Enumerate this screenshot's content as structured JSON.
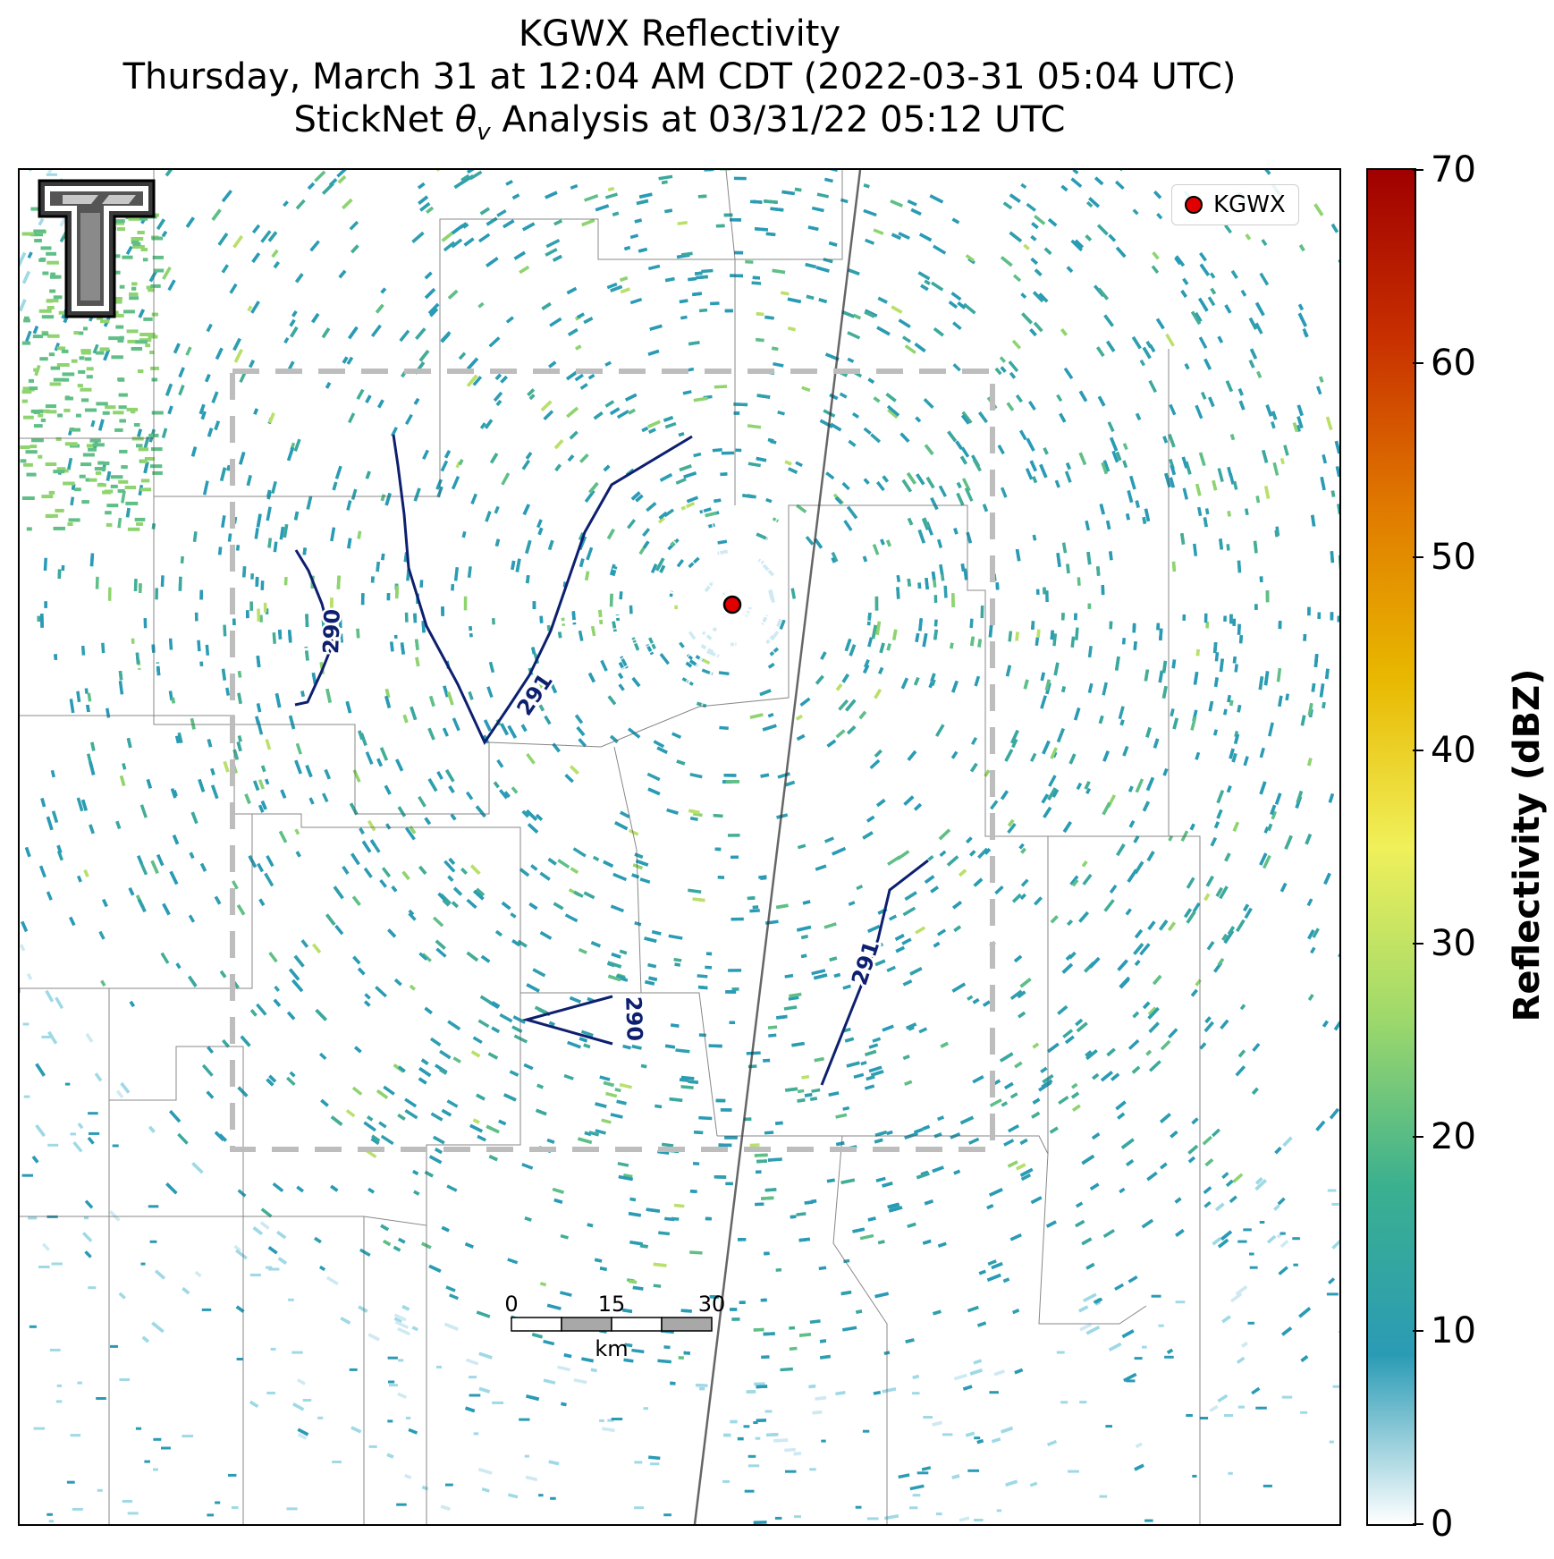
{
  "title": {
    "line1": "KGWX Reflectivity",
    "line2": "Thursday, March 31 at 12:04 AM CDT (2022-03-31 05:04 UTC)",
    "line3_pre": "StickNet ",
    "line3_var": "θ",
    "line3_sub": "v",
    "line3_post": " Analysis at 03/31/22 05:12 UTC"
  },
  "legend": {
    "label": "KGWX",
    "marker_color": "#e00000"
  },
  "colorbar": {
    "label": "Reflectivity (dBZ)",
    "min": 0,
    "max": 70,
    "ticks": [
      "0",
      "10",
      "20",
      "30",
      "40",
      "50",
      "60",
      "70"
    ],
    "stops": [
      "#ffffff",
      "#2a9bb5",
      "#3bb08f",
      "#9fd96b",
      "#f0f05a",
      "#e8b800",
      "#e07a00",
      "#c83000",
      "#a00000"
    ]
  },
  "contours": [
    {
      "level": "290",
      "label": "290"
    },
    {
      "level": "291",
      "label": "291"
    },
    {
      "level": "290",
      "label": "290"
    },
    {
      "level": "291",
      "label": "291"
    }
  ],
  "scale_bar": {
    "ticks": [
      "0",
      "15",
      "30"
    ],
    "unit": "km"
  },
  "logo": {
    "name": "texas-tech-double-t-logo"
  },
  "colors": {
    "contour": "#0d1f6e",
    "analysis_box": "#bdbdbd",
    "radar_site": "#e00000"
  }
}
